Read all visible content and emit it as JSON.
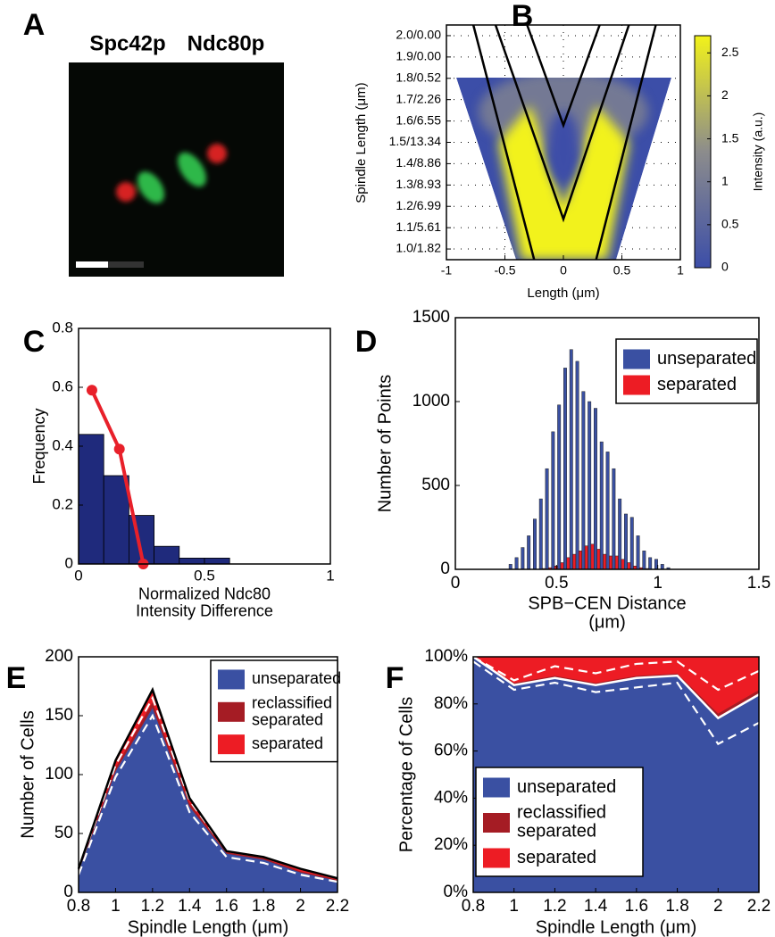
{
  "chart_data": [
    {
      "label": "A",
      "type": "image",
      "labels": [
        {
          "text": "Spc42p",
          "color": "#e8202a"
        },
        {
          "text": "Ndc80p",
          "color": "#1bab4b"
        }
      ]
    },
    {
      "label": "B",
      "type": "heatmap",
      "ylabel": "Spindle Length (μm)",
      "xlabel": "Length (μm)",
      "xlim": [
        -1,
        1
      ],
      "xticks": [
        -1,
        -0.5,
        0,
        0.5,
        1
      ],
      "ylim": [
        0.95,
        2.05
      ],
      "yticks": [
        {
          "value": 1.0,
          "label": "1.0/1.82"
        },
        {
          "value": 1.1,
          "label": "1.1/5.61"
        },
        {
          "value": 1.2,
          "label": "1.2/6.99"
        },
        {
          "value": 1.3,
          "label": "1.3/8.93"
        },
        {
          "value": 1.4,
          "label": "1.4/8.86"
        },
        {
          "value": 1.5,
          "label": "1.5/13.34"
        },
        {
          "value": 1.6,
          "label": "1.6/6.55"
        },
        {
          "value": 1.7,
          "label": "1.7/2.26"
        },
        {
          "value": 1.8,
          "label": "1.8/0.52"
        },
        {
          "value": 1.9,
          "label": "1.9/0.00"
        },
        {
          "value": 2.0,
          "label": "2.0/0.00"
        }
      ],
      "grid": true,
      "lines": [
        {
          "x": [
            -0.31,
            0,
            0.31
          ],
          "y": [
            2.05,
            1.58,
            2.05
          ],
          "color": "#000000"
        },
        {
          "x": [
            -0.58,
            0,
            0.56
          ],
          "y": [
            2.05,
            1.14,
            2.05
          ],
          "color": "#000000"
        },
        {
          "x": [
            -0.77,
            -0.25
          ],
          "y": [
            2.05,
            0.95
          ],
          "color": "#000000"
        },
        {
          "x": [
            0.79,
            0.28
          ],
          "y": [
            2.05,
            0.95
          ],
          "color": "#000000"
        }
      ],
      "clim": [
        0,
        2.7
      ],
      "cticks": [
        0,
        0.5,
        1,
        1.5,
        2,
        2.5
      ],
      "colormap": [
        "#3c4ea8",
        "#8c8c8c",
        "#f2f21a"
      ],
      "clabel": "Intensity (a.u.)"
    },
    {
      "label": "C",
      "type": "histogram",
      "ylabel": "Frequency",
      "xlabel": "Normalized Ndc80 Intensity Difference",
      "bins": [
        0,
        0.1,
        0.2,
        0.3,
        0.4,
        0.5,
        0.6
      ],
      "values": [
        0.44,
        0.3,
        0.165,
        0.06,
        0.02,
        0.02
      ],
      "color": "#1f2a7c",
      "line": {
        "x": [
          0.053,
          0.162,
          0.257
        ],
        "y": [
          0.59,
          0.39,
          0
        ],
        "color": "#e8202a"
      },
      "xlim": [
        0,
        1
      ],
      "xticks": [
        0,
        0.5,
        1
      ],
      "ylim": [
        0,
        0.8
      ],
      "yticks": [
        0,
        0.2,
        0.4,
        0.6,
        0.8
      ]
    },
    {
      "label": "D",
      "type": "bar",
      "ylabel": "Number of Points",
      "xlabel": "SPB−CEN Distance (μm)",
      "x": [
        0.28,
        0.31,
        0.34,
        0.37,
        0.4,
        0.43,
        0.46,
        0.49,
        0.52,
        0.55,
        0.58,
        0.61,
        0.64,
        0.67,
        0.7,
        0.73,
        0.76,
        0.79,
        0.82,
        0.85,
        0.88,
        0.91,
        0.94,
        0.97,
        1.0,
        1.03,
        1.06
      ],
      "series": [
        {
          "name": "unseparated",
          "color": "#3a50a2",
          "values": [
            30,
            70,
            130,
            200,
            300,
            420,
            600,
            820,
            980,
            1200,
            1310,
            1240,
            1060,
            1000,
            960,
            760,
            700,
            600,
            420,
            330,
            310,
            200,
            110,
            70,
            60,
            30,
            10
          ]
        },
        {
          "name": "separated",
          "color": "#ed1c24",
          "values": [
            0,
            0,
            0,
            0,
            0,
            5,
            10,
            20,
            40,
            70,
            90,
            110,
            140,
            150,
            120,
            90,
            80,
            80,
            60,
            40,
            20,
            10,
            5,
            0,
            0,
            0,
            0
          ]
        }
      ],
      "xlim": [
        0,
        1.5
      ],
      "xticks": [
        0,
        0.5,
        1,
        1.5
      ],
      "ylim": [
        0,
        1500
      ],
      "yticks": [
        0,
        500,
        1000,
        1500
      ],
      "legend": "upper right"
    },
    {
      "label": "E",
      "type": "stackedarea",
      "ylabel": "Number of Cells",
      "xlabel": "Spindle Length (μm)",
      "x": [
        0.8,
        1,
        1.2,
        1.4,
        1.6,
        1.8,
        2,
        2.2
      ],
      "series": [
        {
          "name": "unseparated",
          "color": "#3a50a2",
          "values": [
            18,
            103,
            157,
            73,
            33,
            28,
            17,
            10
          ]
        },
        {
          "name": "reclassified separated",
          "color": "#a51c24",
          "values": [
            1,
            3,
            5,
            3,
            1,
            1,
            1,
            1
          ]
        },
        {
          "name": "separated",
          "color": "#ed1c24",
          "values": [
            1,
            6,
            10,
            4,
            1,
            1,
            2,
            1
          ],
          "edge": "#000000"
        }
      ],
      "bounds": {
        "color": "#ffffff",
        "lines": [
          [
            15,
            98,
            150,
            68,
            30,
            25,
            15,
            9
          ],
          [
            20,
            108,
            165,
            78,
            35,
            30,
            20,
            12
          ]
        ]
      },
      "xlim": [
        0.8,
        2.2
      ],
      "xticks": [
        0.8,
        1,
        1.2,
        1.4,
        1.6,
        1.8,
        2,
        2.2
      ],
      "ylim": [
        0,
        200
      ],
      "yticks": [
        0,
        50,
        100,
        150,
        200
      ],
      "legend": "upper right"
    },
    {
      "label": "F",
      "type": "stackedarea",
      "ylabel": "Percentage of Cells",
      "xlabel": "Spindle Length (μm)",
      "x": [
        0.8,
        1,
        1.2,
        1.4,
        1.6,
        1.8,
        2,
        2.2
      ],
      "series": [
        {
          "name": "unseparated",
          "color": "#3a50a2",
          "values": [
            100,
            88,
            91,
            88,
            91,
            92,
            74,
            84
          ],
          "edge": "#ffffff"
        },
        {
          "name": "reclassified separated",
          "color": "#a51c24",
          "values": [
            0,
            1,
            1,
            1,
            1,
            1,
            2,
            2
          ]
        },
        {
          "name": "separated",
          "color": "#ed1c24",
          "values": [
            0,
            11,
            8,
            11,
            8,
            7,
            24,
            14
          ]
        }
      ],
      "bounds": {
        "color": "#ffffff",
        "lines": [
          [
            98,
            86,
            89,
            85,
            87,
            89,
            63,
            72
          ],
          [
            100,
            90,
            96,
            93,
            97,
            98,
            86,
            94
          ]
        ]
      },
      "xlim": [
        0.8,
        2.2
      ],
      "xticks": [
        0.8,
        1,
        1.2,
        1.4,
        1.6,
        1.8,
        2,
        2.2
      ],
      "ylim": [
        0,
        100
      ],
      "yticks": [
        {
          "value": 0,
          "label": "0%"
        },
        {
          "value": 20,
          "label": "20%"
        },
        {
          "value": 40,
          "label": "40%"
        },
        {
          "value": 60,
          "label": "60%"
        },
        {
          "value": 80,
          "label": "80%"
        },
        {
          "value": 100,
          "label": "100%"
        }
      ],
      "legend": "lower left"
    }
  ]
}
